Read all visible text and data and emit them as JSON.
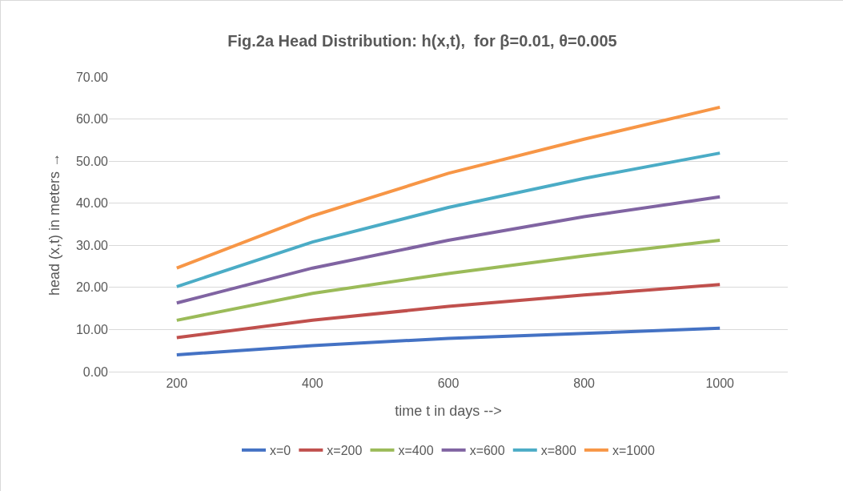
{
  "chart_data": {
    "type": "line",
    "title": "Fig.2a Head Distribution: h(x,t),  for β=0.01, θ=0.005",
    "xlabel": "time t in days -->",
    "ylabel": "head (x,t) in meters →",
    "categories": [
      "200",
      "400",
      "600",
      "800",
      "1000"
    ],
    "series": [
      {
        "name": "x=0",
        "color": "#4472c4",
        "values": [
          4.0,
          6.2,
          7.9,
          9.1,
          10.3
        ]
      },
      {
        "name": "x=200",
        "color": "#c0504d",
        "values": [
          8.1,
          12.2,
          15.5,
          18.2,
          20.7
        ]
      },
      {
        "name": "x=400",
        "color": "#9bbb59",
        "values": [
          12.2,
          18.6,
          23.3,
          27.5,
          31.2
        ]
      },
      {
        "name": "x=600",
        "color": "#8064a2",
        "values": [
          16.3,
          24.6,
          31.2,
          36.8,
          41.5
        ]
      },
      {
        "name": "x=800",
        "color": "#4bacc6",
        "values": [
          20.2,
          30.8,
          39.0,
          45.9,
          51.9
        ]
      },
      {
        "name": "x=1000",
        "color": "#f79646",
        "values": [
          24.6,
          37.0,
          47.1,
          55.2,
          62.8
        ]
      }
    ],
    "ylim": [
      0,
      70
    ],
    "yticks": [
      {
        "value": 0,
        "label": "0.00"
      },
      {
        "value": 10,
        "label": "10.00"
      },
      {
        "value": 20,
        "label": "20.00"
      },
      {
        "value": 30,
        "label": "30.00"
      },
      {
        "value": 40,
        "label": "40.00"
      },
      {
        "value": 50,
        "label": "50.00"
      },
      {
        "value": 60,
        "label": "60.00"
      },
      {
        "value": 70,
        "label": "70.00"
      }
    ],
    "grid": "y",
    "legend": "bottom",
    "marker": "none",
    "line_style": "solid"
  }
}
